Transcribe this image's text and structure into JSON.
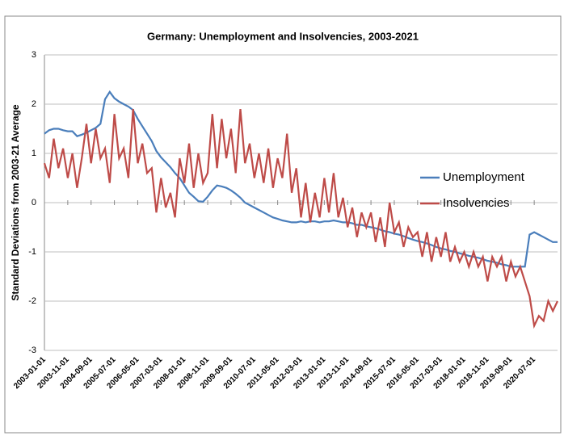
{
  "chart_data": {
    "type": "line",
    "title": "Germany: Unemployment  and Insolvencies, 2003-2021",
    "y_label": "Standard Deviations from 2003-21 Average",
    "categories": [
      "2003-01-01",
      null,
      null,
      null,
      null,
      "2003-11-01",
      null,
      null,
      null,
      null,
      "2004-09-01",
      null,
      null,
      null,
      null,
      "2005-07-01",
      null,
      null,
      null,
      null,
      "2006-05-01",
      null,
      null,
      null,
      null,
      "2007-03-01",
      null,
      null,
      null,
      null,
      "2008-01-01",
      null,
      null,
      null,
      null,
      "2008-11-01",
      null,
      null,
      null,
      null,
      "2009-09-01",
      null,
      null,
      null,
      null,
      "2010-07-01",
      null,
      null,
      null,
      null,
      "2011-05-01",
      null,
      null,
      null,
      null,
      "2012-03-01",
      null,
      null,
      null,
      null,
      "2013-01-01",
      null,
      null,
      null,
      null,
      "2013-11-01",
      null,
      null,
      null,
      null,
      "2014-09-01",
      null,
      null,
      null,
      null,
      "2015-07-01",
      null,
      null,
      null,
      null,
      "2016-05-01",
      null,
      null,
      null,
      null,
      "2017-03-01",
      null,
      null,
      null,
      null,
      "2018-01-01",
      null,
      null,
      null,
      null,
      "2018-11-01",
      null,
      null,
      null,
      null,
      "2019-09-01",
      null,
      null,
      null,
      null,
      "2020-07-01",
      null,
      null,
      null,
      null,
      null
    ],
    "series": [
      {
        "name": "Unemployment",
        "color": "#4a7ebb",
        "values": [
          1.4,
          1.47,
          1.5,
          1.5,
          1.47,
          1.45,
          1.45,
          1.35,
          1.38,
          1.42,
          1.47,
          1.52,
          1.6,
          2.1,
          2.25,
          2.12,
          2.05,
          2.0,
          1.95,
          1.88,
          1.7,
          1.55,
          1.4,
          1.25,
          1.05,
          0.92,
          0.82,
          0.72,
          0.6,
          0.5,
          0.35,
          0.2,
          0.12,
          0.03,
          0.02,
          0.12,
          0.25,
          0.35,
          0.33,
          0.3,
          0.25,
          0.18,
          0.1,
          0.0,
          -0.05,
          -0.1,
          -0.15,
          -0.2,
          -0.25,
          -0.3,
          -0.33,
          -0.36,
          -0.38,
          -0.4,
          -0.4,
          -0.38,
          -0.4,
          -0.38,
          -0.38,
          -0.4,
          -0.38,
          -0.38,
          -0.36,
          -0.38,
          -0.4,
          -0.4,
          -0.42,
          -0.45,
          -0.45,
          -0.48,
          -0.5,
          -0.52,
          -0.55,
          -0.58,
          -0.6,
          -0.63,
          -0.65,
          -0.68,
          -0.72,
          -0.75,
          -0.78,
          -0.8,
          -0.83,
          -0.86,
          -0.9,
          -0.93,
          -0.95,
          -0.98,
          -1.0,
          -1.03,
          -1.05,
          -1.08,
          -1.1,
          -1.12,
          -1.15,
          -1.18,
          -1.2,
          -1.22,
          -1.25,
          -1.27,
          -1.3,
          -1.3,
          -1.3,
          -1.3,
          -0.65,
          -0.6,
          -0.65,
          -0.7,
          -0.75,
          -0.8,
          -0.8
        ]
      },
      {
        "name": "Insolvencies",
        "color": "#be4b48",
        "values": [
          0.8,
          0.5,
          1.3,
          0.7,
          1.1,
          0.5,
          1.0,
          0.3,
          0.9,
          1.6,
          0.8,
          1.5,
          0.9,
          1.1,
          0.4,
          1.8,
          0.9,
          1.1,
          0.5,
          1.9,
          0.8,
          1.2,
          0.6,
          0.7,
          -0.2,
          0.5,
          -0.1,
          0.2,
          -0.3,
          0.9,
          0.4,
          1.2,
          0.3,
          1.0,
          0.4,
          0.6,
          1.8,
          0.7,
          1.7,
          0.9,
          1.5,
          0.6,
          1.9,
          0.8,
          1.2,
          0.5,
          1.0,
          0.4,
          1.1,
          0.3,
          0.9,
          0.5,
          1.4,
          0.2,
          0.7,
          -0.3,
          0.4,
          -0.4,
          0.2,
          -0.3,
          0.5,
          -0.2,
          0.6,
          -0.3,
          0.1,
          -0.5,
          -0.1,
          -0.7,
          -0.2,
          -0.5,
          -0.2,
          -0.8,
          -0.3,
          -0.9,
          0.0,
          -0.6,
          -0.4,
          -0.9,
          -0.5,
          -0.7,
          -0.6,
          -1.1,
          -0.6,
          -1.2,
          -0.7,
          -1.1,
          -0.6,
          -1.2,
          -0.9,
          -1.2,
          -1.0,
          -1.3,
          -1.0,
          -1.3,
          -1.1,
          -1.6,
          -1.1,
          -1.3,
          -1.1,
          -1.6,
          -1.2,
          -1.5,
          -1.3,
          -1.6,
          -1.9,
          -2.5,
          -2.3,
          -2.4,
          -2.0,
          -2.2,
          -2.0
        ]
      }
    ],
    "ylim": [
      -3,
      3
    ],
    "yticks": [
      -3,
      -2,
      -1,
      0,
      1,
      2,
      3
    ],
    "grid": true,
    "legend": "right"
  }
}
